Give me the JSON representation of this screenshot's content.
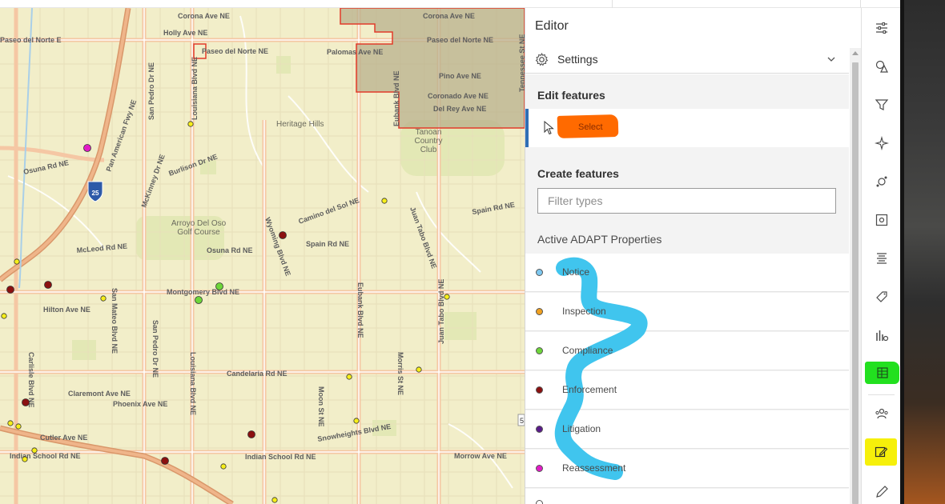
{
  "editor": {
    "title": "Editor",
    "settings_label": "Settings",
    "edit_features_title": "Edit features",
    "select_label": "Select",
    "create_features_title": "Create features",
    "filter_placeholder": "Filter types",
    "group_title": "Active ADAPT Properties",
    "layers": [
      {
        "label": "Notice",
        "color": "#7ec8f0"
      },
      {
        "label": "Inspection",
        "color": "#f0a020"
      },
      {
        "label": "Compliance",
        "color": "#6ed63a"
      },
      {
        "label": "Enforcement",
        "color": "#8b1010"
      },
      {
        "label": "Litigation",
        "color": "#5a1b8a"
      },
      {
        "label": "Reassessment",
        "color": "#e21cc6"
      }
    ]
  },
  "annotation_colors": {
    "select_highlight": "#ff6a00",
    "scribble": "#3cc4ee",
    "green_marker": "#22e01f",
    "yellow_marker": "#f6f00a"
  },
  "action_bar": {
    "icons": [
      "sliders-icon",
      "shapes-icon",
      "filter-icon",
      "sparkle-icon",
      "sketch-icon",
      "settings-box-icon",
      "align-icon",
      "tag-icon",
      "analysis-icon",
      "table-list-icon",
      "group-icon",
      "edit-icon",
      "pen-icon"
    ]
  },
  "map": {
    "streets": [
      "Corona Ave NE",
      "Corona Ave NE",
      "Holly Ave NE",
      "Paseo del Norte E",
      "Paseo del Norte NE",
      "Paseo del Norte NE",
      "Palomas Ave NE",
      "Pino Ave NE",
      "Coronado Ave NE",
      "Del Rey Ave NE",
      "Osuna Rd NE",
      "Pan American Fwy NE",
      "San Pedro Dr NE",
      "Louisiana Blvd NE",
      "Tennessee St NE",
      "Eubank Blvd NE",
      "Burlison Dr NE",
      "McKinney Dr NE",
      "Camino del Sol NE",
      "Juan Tabo Blvd NE",
      "Spain Rd NE",
      "Spain Rd NE",
      "McLeod Rd NE",
      "Osuna Rd NE",
      "Wyoming Blvd NE",
      "Montgomery Blvd NE",
      "Hilton Ave NE",
      "San Mateo Blvd NE",
      "San Pedro Dr NE",
      "Louisiana Blvd NE",
      "Eubank Blvd NE",
      "Morris St NE",
      "Juan Tabo Blvd NE",
      "Candelaria Rd NE",
      "Moon St NE",
      "Claremont Ave NE",
      "Phoenix Ave NE",
      "Carlisle Blvd NE",
      "Cutler Ave NE",
      "Indian School Rd NE",
      "Indian School Rd NE",
      "Snowheights Blvd NE",
      "Morrow Ave NE"
    ],
    "places": [
      "Heritage Hills",
      "Tanoan Country Club",
      "Arroyo Del Oso Golf Course"
    ],
    "shield": "25",
    "edge_marks": [
      "5"
    ]
  }
}
